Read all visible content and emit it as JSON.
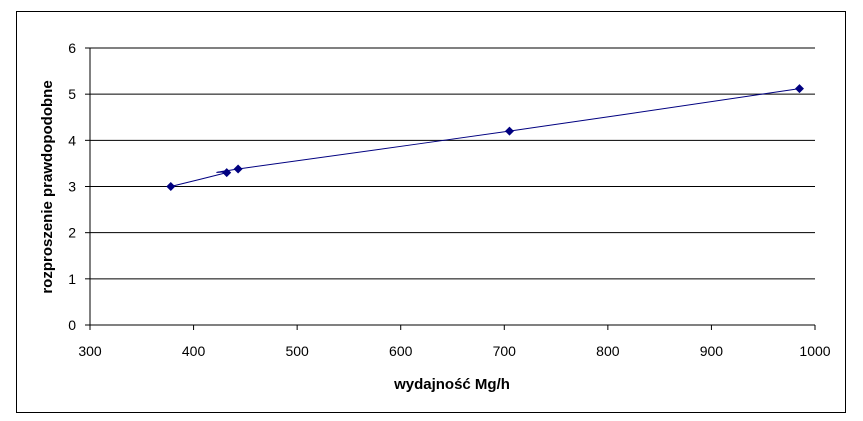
{
  "chart_data": {
    "type": "line",
    "title": "",
    "xlabel": "wydajność Mg/h",
    "ylabel": "rozproszenie prawdopodobne",
    "xlim": [
      300,
      1000
    ],
    "ylim": [
      0,
      6
    ],
    "xticks": [
      300,
      400,
      500,
      600,
      700,
      800,
      900,
      1000
    ],
    "yticks": [
      0,
      1,
      2,
      3,
      4,
      5,
      6
    ],
    "grid": "horizontal",
    "legend": "none",
    "line_color": "#000080",
    "marker": "diamond",
    "series": [
      {
        "x": [
          378,
          432,
          443,
          705,
          985
        ],
        "y": [
          3.0,
          3.3,
          3.38,
          4.2,
          5.12
        ]
      }
    ]
  }
}
